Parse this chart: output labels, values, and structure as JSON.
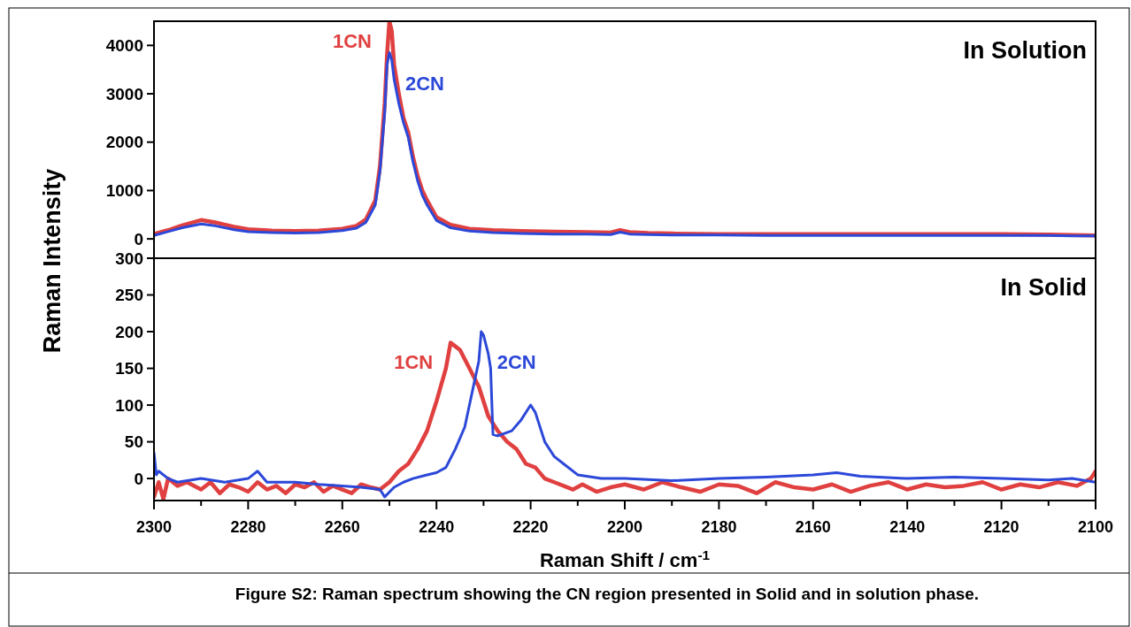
{
  "chart_data": [
    {
      "type": "line",
      "ylabel": "Raman Intensity",
      "annotations": [
        "In Solution"
      ],
      "xlim": [
        2300,
        2100
      ],
      "ylim": [
        -400,
        4500
      ],
      "yticks": [
        0,
        1000,
        2000,
        3000,
        4000
      ],
      "tick_labels": "y",
      "series": [
        {
          "name": "1CN",
          "color": "#e04040",
          "x": [
            2300,
            2297,
            2294,
            2290,
            2287,
            2283,
            2280,
            2275,
            2270,
            2265,
            2260,
            2257,
            2255,
            2253,
            2252,
            2251,
            2250.5,
            2250,
            2249.5,
            2249,
            2248,
            2247,
            2246,
            2245,
            2244,
            2243,
            2242,
            2240,
            2237,
            2233,
            2228,
            2222,
            2215,
            2208,
            2203,
            2201,
            2199,
            2195,
            2190,
            2180,
            2170,
            2160,
            2150,
            2140,
            2130,
            2120,
            2110,
            2105,
            2100
          ],
          "values": [
            100,
            180,
            280,
            390,
            340,
            250,
            200,
            170,
            160,
            170,
            210,
            270,
            400,
            800,
            1500,
            2800,
            3800,
            4500,
            4300,
            3600,
            3000,
            2500,
            2200,
            1700,
            1300,
            1000,
            800,
            450,
            290,
            210,
            180,
            160,
            150,
            140,
            130,
            180,
            140,
            120,
            110,
            100,
            100,
            100,
            100,
            100,
            100,
            100,
            90,
            80,
            70
          ]
        },
        {
          "name": "2CN",
          "color": "#2c48d8",
          "x": [
            2300,
            2297,
            2294,
            2290,
            2287,
            2283,
            2280,
            2275,
            2270,
            2265,
            2260,
            2257,
            2255,
            2253,
            2252,
            2251,
            2250.5,
            2250,
            2249.5,
            2249,
            2248,
            2247,
            2246,
            2245,
            2244,
            2243,
            2242,
            2240,
            2237,
            2233,
            2228,
            2222,
            2215,
            2208,
            2203,
            2201,
            2199,
            2195,
            2190,
            2180,
            2170,
            2160,
            2150,
            2140,
            2130,
            2120,
            2110,
            2105,
            2100
          ],
          "values": [
            70,
            150,
            230,
            310,
            270,
            190,
            150,
            130,
            120,
            130,
            170,
            220,
            340,
            700,
            1400,
            2600,
            3600,
            3850,
            3700,
            3300,
            2800,
            2400,
            2100,
            1600,
            1200,
            900,
            700,
            380,
            230,
            160,
            130,
            110,
            100,
            100,
            90,
            140,
            100,
            90,
            80,
            80,
            70,
            70,
            70,
            70,
            70,
            70,
            70,
            60,
            60
          ]
        }
      ]
    },
    {
      "type": "line",
      "xlabel": "Raman Shift / cm$^{-1}$",
      "annotations": [
        "In Solid",
        "Figure S2:  Raman spectrum showing the CN region presented in Solid and in solution phase."
      ],
      "xlim": [
        2300,
        2100
      ],
      "ylim": [
        -30,
        300
      ],
      "xticks": [
        2300,
        {
          "value": 2290,
          "label": null
        },
        2280,
        {
          "value": 2270,
          "label": null
        },
        2260,
        {
          "value": 2250,
          "label": null
        },
        2240,
        {
          "value": 2230,
          "label": null
        },
        2220,
        {
          "value": 2210,
          "label": null
        },
        2200,
        {
          "value": 2190,
          "label": null
        },
        2180,
        {
          "value": 2170,
          "label": null
        },
        2160,
        {
          "value": 2150,
          "label": null
        },
        2140,
        {
          "value": 2130,
          "label": null
        },
        2120,
        {
          "value": 2110,
          "label": null
        },
        2100
      ],
      "yticks": [
        0,
        50,
        100,
        150,
        200,
        250,
        300
      ],
      "series": [
        {
          "name": "1CN",
          "color": "#e04040",
          "x": [
            2300,
            2299,
            2298,
            2297,
            2295,
            2293,
            2290,
            2288,
            2286,
            2284,
            2282,
            2280,
            2278,
            2276,
            2274,
            2272,
            2270,
            2268,
            2266,
            2264,
            2262,
            2260,
            2258,
            2256,
            2254,
            2252,
            2250,
            2248,
            2246,
            2244,
            2242,
            2240,
            2238,
            2237,
            2236,
            2235,
            2233,
            2231,
            2229,
            2227,
            2225,
            2223,
            2221,
            2219,
            2217,
            2215,
            2213,
            2211,
            2209,
            2206,
            2203,
            2200,
            2196,
            2192,
            2188,
            2184,
            2180,
            2176,
            2172,
            2168,
            2164,
            2160,
            2156,
            2152,
            2148,
            2144,
            2140,
            2136,
            2132,
            2128,
            2124,
            2120,
            2116,
            2112,
            2108,
            2104,
            2101,
            2100
          ],
          "values": [
            -25,
            -5,
            -28,
            0,
            -10,
            -5,
            -15,
            -5,
            -20,
            -8,
            -12,
            -18,
            -5,
            -15,
            -10,
            -20,
            -8,
            -12,
            -5,
            -18,
            -10,
            -15,
            -20,
            -8,
            -12,
            -15,
            -5,
            10,
            20,
            40,
            65,
            105,
            150,
            185,
            180,
            175,
            150,
            125,
            85,
            65,
            50,
            40,
            20,
            15,
            0,
            -5,
            -10,
            -15,
            -8,
            -18,
            -12,
            -8,
            -15,
            -5,
            -12,
            -18,
            -8,
            -10,
            -20,
            -5,
            -12,
            -15,
            -8,
            -18,
            -10,
            -5,
            -15,
            -8,
            -12,
            -10,
            -5,
            -15,
            -8,
            -12,
            -5,
            -10,
            0,
            10
          ]
        },
        {
          "name": "2CN",
          "color": "#2c48d8",
          "x": [
            2300,
            2299.5,
            2299,
            2297,
            2295,
            2290,
            2285,
            2280,
            2278,
            2276,
            2270,
            2265,
            2260,
            2256,
            2252,
            2251,
            2249,
            2247,
            2245,
            2242,
            2240,
            2238,
            2236,
            2234,
            2232,
            2231,
            2230.5,
            2230,
            2229,
            2228.5,
            2228,
            2227,
            2224,
            2222,
            2220,
            2219,
            2217,
            2215,
            2213,
            2210,
            2205,
            2200,
            2190,
            2180,
            2170,
            2160,
            2155,
            2150,
            2140,
            2130,
            2120,
            2110,
            2105,
            2100
          ],
          "values": [
            35,
            5,
            10,
            0,
            -5,
            0,
            -5,
            0,
            10,
            -5,
            -5,
            -8,
            -10,
            -12,
            -15,
            -25,
            -12,
            -5,
            0,
            5,
            8,
            15,
            40,
            70,
            130,
            160,
            200,
            195,
            170,
            150,
            60,
            58,
            65,
            80,
            100,
            90,
            50,
            30,
            20,
            5,
            0,
            0,
            -3,
            0,
            2,
            5,
            8,
            3,
            0,
            2,
            0,
            -2,
            0,
            -5
          ]
        }
      ]
    }
  ]
}
